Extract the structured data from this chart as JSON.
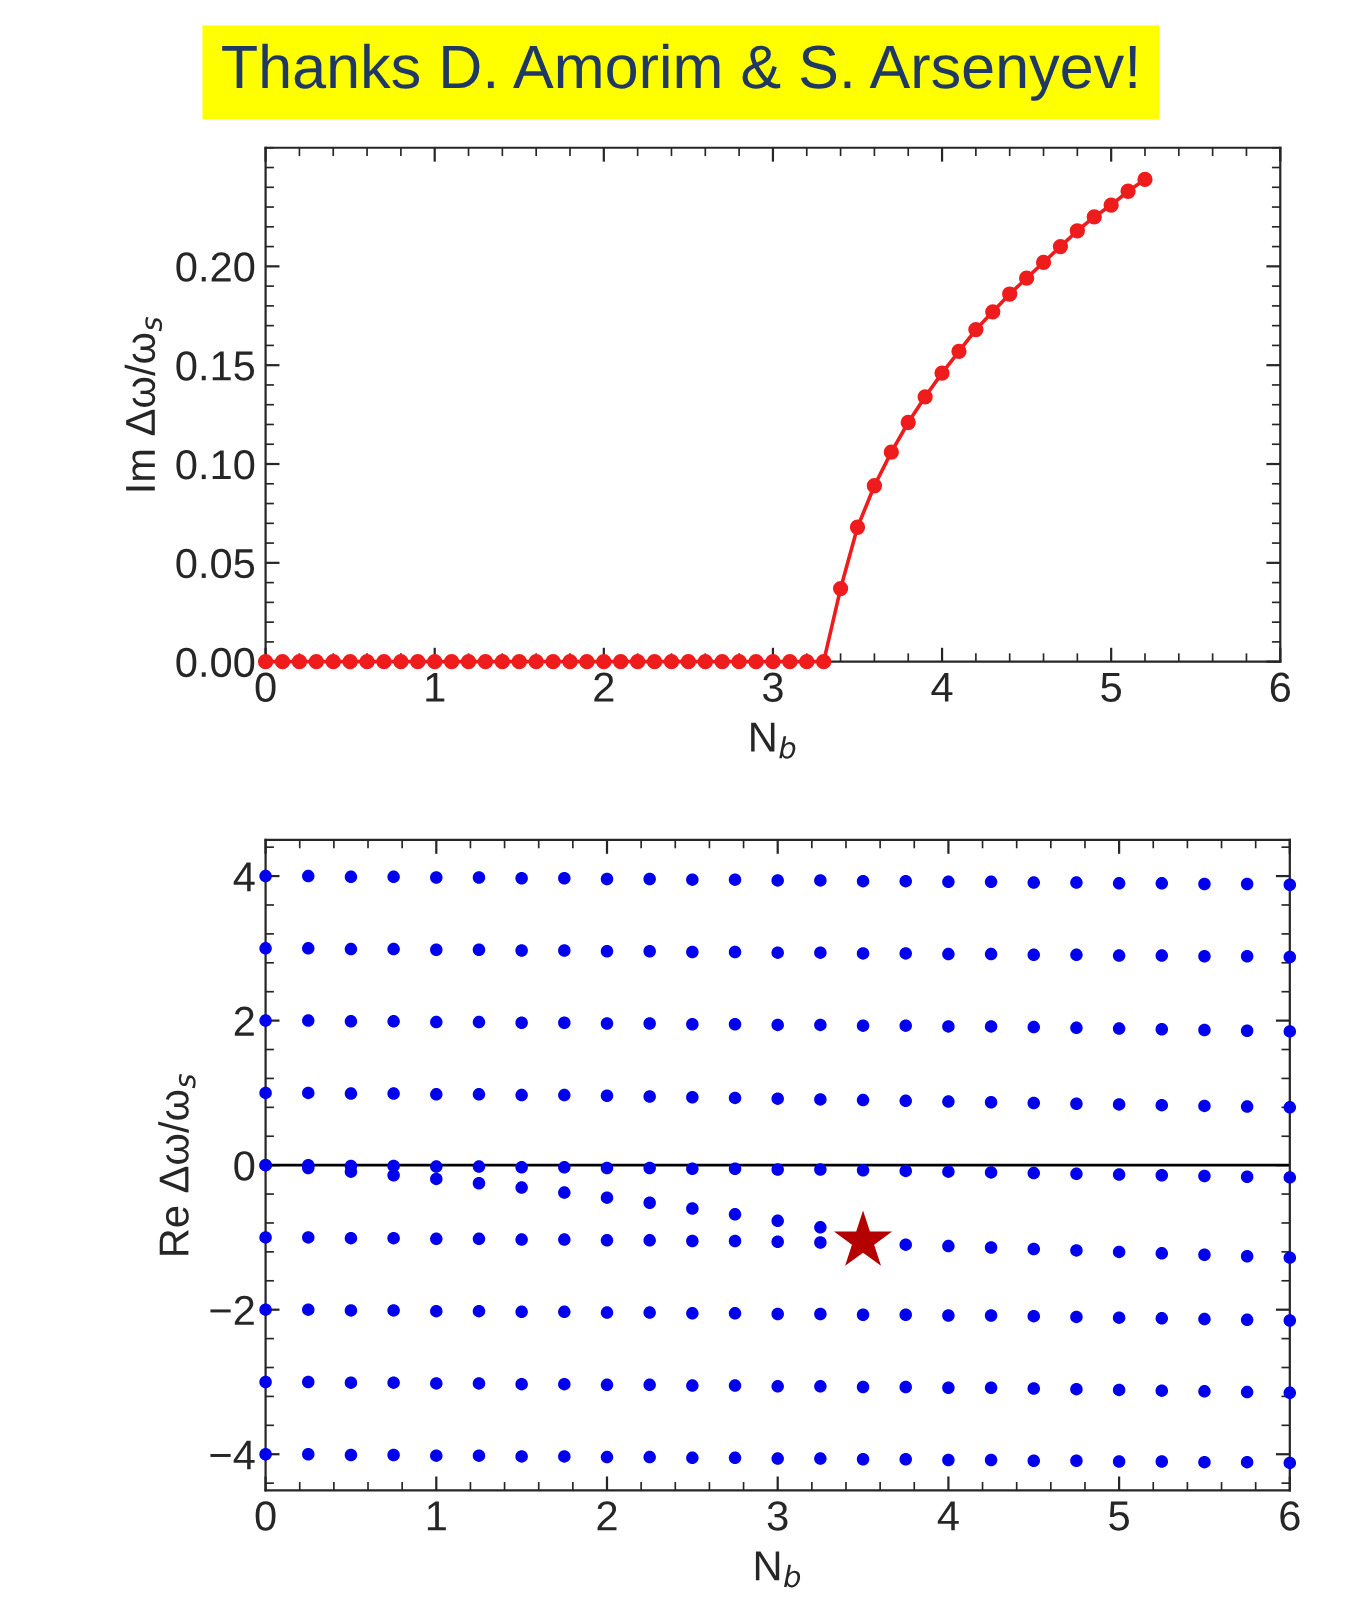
{
  "chart_data": [
    {
      "type": "line",
      "title": "Thanks D. Amorim & S. Arsenyev!",
      "xlabel": "N$_{b}$",
      "ylabel": "Im Δω/ω$_{s}$",
      "xlim": [
        0,
        6
      ],
      "ylim": [
        0,
        0.26
      ],
      "xticks": [
        0,
        1,
        2,
        3,
        4,
        5,
        6
      ],
      "yticks": [
        {
          "value": 0,
          "label": "0.00"
        },
        {
          "value": 0.05,
          "label": "0.05"
        },
        {
          "value": 0.1,
          "label": "0.10"
        },
        {
          "value": 0.15,
          "label": "0.15"
        },
        {
          "value": 0.2,
          "label": "0.20"
        }
      ],
      "marker": "circle",
      "line_style": "solid",
      "grid": false,
      "legend": false,
      "series": [
        {
          "color": "#ee1c1c",
          "x": [
            0,
            0.1,
            0.2,
            0.3,
            0.4,
            0.5,
            0.6,
            0.7,
            0.8,
            0.9,
            1.0,
            1.1,
            1.2,
            1.3,
            1.4,
            1.5,
            1.6,
            1.7,
            1.8,
            1.9,
            2.0,
            2.1,
            2.2,
            2.3,
            2.4,
            2.5,
            2.6,
            2.7,
            2.8,
            2.9,
            3.0,
            3.1,
            3.2,
            3.3,
            3.4,
            3.5,
            3.6,
            3.7,
            3.8,
            3.9,
            4.0,
            4.1,
            4.2,
            4.3,
            4.4,
            4.5,
            4.6,
            4.7,
            4.8,
            4.9,
            5.0,
            5.1,
            5.2
          ],
          "values": [
            0,
            0,
            0,
            0,
            0,
            0,
            0,
            0,
            0,
            0,
            0,
            0,
            0,
            0,
            0,
            0,
            0,
            0,
            0,
            0,
            0,
            0,
            0,
            0,
            0,
            0,
            0,
            0,
            0,
            0,
            0,
            0,
            0,
            0,
            0.037,
            0.068,
            0.089,
            0.106,
            0.121,
            0.134,
            0.146,
            0.157,
            0.168,
            0.177,
            0.186,
            0.194,
            0.202,
            0.21,
            0.218,
            0.225,
            0.231,
            0.238,
            0.244
          ]
        }
      ]
    },
    {
      "type": "scatter",
      "xlabel": "N$_{b}$",
      "ylabel": "Re Δω/ω$_{s}$",
      "xlim": [
        0,
        6
      ],
      "ylim": [
        -4.5,
        4.5
      ],
      "xticks": [
        0,
        1,
        2,
        3,
        4,
        5,
        6
      ],
      "yticks": [
        -4,
        -2,
        0,
        2,
        4
      ],
      "marker": "circle",
      "grid": false,
      "legend": false,
      "ref_lines": [
        {
          "axis": "y",
          "value": 0,
          "color": "#000000"
        }
      ],
      "series": [
        {
          "color": "#0000ee",
          "x": [
            0,
            0.25,
            0.5,
            0.75,
            1.0,
            1.25,
            1.5,
            1.75,
            2.0,
            2.25,
            2.5,
            2.75,
            3.0,
            3.25,
            3.5,
            3.75,
            4.0,
            4.25,
            4.5,
            4.75,
            5.0,
            5.25,
            5.5,
            5.75,
            6.0
          ],
          "values": [
            4.0,
            4.0,
            3.99,
            3.99,
            3.98,
            3.98,
            3.97,
            3.97,
            3.96,
            3.96,
            3.95,
            3.95,
            3.94,
            3.94,
            3.93,
            3.93,
            3.92,
            3.92,
            3.91,
            3.91,
            3.9,
            3.9,
            3.89,
            3.89,
            3.88
          ]
        },
        {
          "color": "#0000ee",
          "x": [
            0,
            0.25,
            0.5,
            0.75,
            1.0,
            1.25,
            1.5,
            1.75,
            2.0,
            2.25,
            2.5,
            2.75,
            3.0,
            3.25,
            3.5,
            3.75,
            4.0,
            4.25,
            4.5,
            4.75,
            5.0,
            5.25,
            5.5,
            5.75,
            6.0
          ],
          "values": [
            3.0,
            3.0,
            2.99,
            2.99,
            2.98,
            2.98,
            2.97,
            2.97,
            2.96,
            2.96,
            2.95,
            2.95,
            2.94,
            2.94,
            2.93,
            2.93,
            2.92,
            2.92,
            2.91,
            2.91,
            2.9,
            2.9,
            2.89,
            2.89,
            2.88
          ]
        },
        {
          "color": "#0000ee",
          "x": [
            0,
            0.25,
            0.5,
            0.75,
            1.0,
            1.25,
            1.5,
            1.75,
            2.0,
            2.25,
            2.5,
            2.75,
            3.0,
            3.25,
            3.5,
            3.75,
            4.0,
            4.25,
            4.5,
            4.75,
            5.0,
            5.25,
            5.5,
            5.75,
            6.0
          ],
          "values": [
            2.0,
            2.0,
            1.99,
            1.99,
            1.98,
            1.98,
            1.97,
            1.97,
            1.96,
            1.96,
            1.95,
            1.95,
            1.94,
            1.94,
            1.93,
            1.93,
            1.92,
            1.92,
            1.91,
            1.9,
            1.89,
            1.88,
            1.87,
            1.86,
            1.85
          ]
        },
        {
          "color": "#0000ee",
          "x": [
            0,
            0.25,
            0.5,
            0.75,
            1.0,
            1.25,
            1.5,
            1.75,
            2.0,
            2.25,
            2.5,
            2.75,
            3.0,
            3.25,
            3.5,
            3.75,
            4.0,
            4.25,
            4.5,
            4.75,
            5.0,
            5.25,
            5.5,
            5.75,
            6.0
          ],
          "values": [
            1.0,
            1.0,
            0.99,
            0.99,
            0.98,
            0.98,
            0.97,
            0.97,
            0.96,
            0.95,
            0.94,
            0.93,
            0.92,
            0.91,
            0.9,
            0.89,
            0.88,
            0.87,
            0.86,
            0.85,
            0.84,
            0.83,
            0.82,
            0.81,
            0.8
          ]
        },
        {
          "color": "#0000ee",
          "x": [
            0,
            0.25,
            0.5,
            0.75,
            1.0,
            1.25,
            1.5,
            1.75,
            2.0,
            2.25,
            2.5,
            2.75,
            3.0,
            3.25,
            3.5,
            3.75,
            4.0,
            4.25,
            4.5,
            4.75,
            5.0,
            5.25,
            5.5,
            5.75,
            6.0
          ],
          "values": [
            0.0,
            0.0,
            -0.01,
            -0.01,
            -0.02,
            -0.02,
            -0.03,
            -0.03,
            -0.04,
            -0.04,
            -0.05,
            -0.05,
            -0.06,
            -0.06,
            -0.07,
            -0.08,
            -0.09,
            -0.1,
            -0.11,
            -0.12,
            -0.13,
            -0.14,
            -0.15,
            -0.16,
            -0.17
          ]
        },
        {
          "color": "#0000ee",
          "x": [
            0,
            0.25,
            0.5,
            0.75,
            1.0,
            1.25,
            1.5,
            1.75,
            2.0,
            2.25,
            2.5,
            2.75,
            3.0,
            3.25
          ],
          "values": [
            0.0,
            -0.04,
            -0.09,
            -0.14,
            -0.19,
            -0.25,
            -0.31,
            -0.38,
            -0.45,
            -0.52,
            -0.6,
            -0.68,
            -0.77,
            -0.86
          ]
        },
        {
          "color": "#0000ee",
          "x": [
            0,
            0.25,
            0.5,
            0.75,
            1.0,
            1.25,
            1.5,
            1.75,
            2.0,
            2.25,
            2.5,
            2.75,
            3.0,
            3.25,
            3.5,
            3.75,
            4.0,
            4.25,
            4.5,
            4.75,
            5.0,
            5.25,
            5.5,
            5.75,
            6.0
          ],
          "values": [
            -1.0,
            -1.0,
            -1.01,
            -1.01,
            -1.02,
            -1.02,
            -1.03,
            -1.03,
            -1.04,
            -1.04,
            -1.05,
            -1.05,
            -1.06,
            -1.07,
            null,
            -1.1,
            -1.12,
            -1.14,
            -1.16,
            -1.18,
            -1.2,
            -1.22,
            -1.24,
            -1.26,
            -1.28
          ]
        },
        {
          "color": "#0000ee",
          "x": [
            0,
            0.25,
            0.5,
            0.75,
            1.0,
            1.25,
            1.5,
            1.75,
            2.0,
            2.25,
            2.5,
            2.75,
            3.0,
            3.25,
            3.5,
            3.75,
            4.0,
            4.25,
            4.5,
            4.75,
            5.0,
            5.25,
            5.5,
            5.75,
            6.0
          ],
          "values": [
            -2.0,
            -2.0,
            -2.01,
            -2.01,
            -2.02,
            -2.02,
            -2.03,
            -2.03,
            -2.04,
            -2.04,
            -2.05,
            -2.05,
            -2.06,
            -2.06,
            -2.07,
            -2.07,
            -2.08,
            -2.08,
            -2.09,
            -2.1,
            -2.11,
            -2.12,
            -2.13,
            -2.14,
            -2.15
          ]
        },
        {
          "color": "#0000ee",
          "x": [
            0,
            0.25,
            0.5,
            0.75,
            1.0,
            1.25,
            1.5,
            1.75,
            2.0,
            2.25,
            2.5,
            2.75,
            3.0,
            3.25,
            3.5,
            3.75,
            4.0,
            4.25,
            4.5,
            4.75,
            5.0,
            5.25,
            5.5,
            5.75,
            6.0
          ],
          "values": [
            -3.0,
            -3.0,
            -3.01,
            -3.01,
            -3.02,
            -3.02,
            -3.03,
            -3.03,
            -3.04,
            -3.04,
            -3.05,
            -3.05,
            -3.06,
            -3.06,
            -3.07,
            -3.07,
            -3.08,
            -3.08,
            -3.09,
            -3.1,
            -3.11,
            -3.12,
            -3.13,
            -3.14,
            -3.15
          ]
        },
        {
          "color": "#0000ee",
          "x": [
            0,
            0.25,
            0.5,
            0.75,
            1.0,
            1.25,
            1.5,
            1.75,
            2.0,
            2.25,
            2.5,
            2.75,
            3.0,
            3.25,
            3.5,
            3.75,
            4.0,
            4.25,
            4.5,
            4.75,
            5.0,
            5.25,
            5.5,
            5.75,
            6.0
          ],
          "values": [
            -4.0,
            -4.0,
            -4.01,
            -4.01,
            -4.02,
            -4.02,
            -4.03,
            -4.03,
            -4.04,
            -4.04,
            -4.05,
            -4.05,
            -4.06,
            -4.06,
            -4.07,
            -4.07,
            -4.08,
            -4.08,
            -4.09,
            -4.09,
            -4.1,
            -4.1,
            -4.11,
            -4.11,
            -4.12
          ]
        },
        {
          "color": "#b40000",
          "marker": "star",
          "x": [
            3.5
          ],
          "values": [
            -1.05
          ]
        }
      ]
    }
  ]
}
